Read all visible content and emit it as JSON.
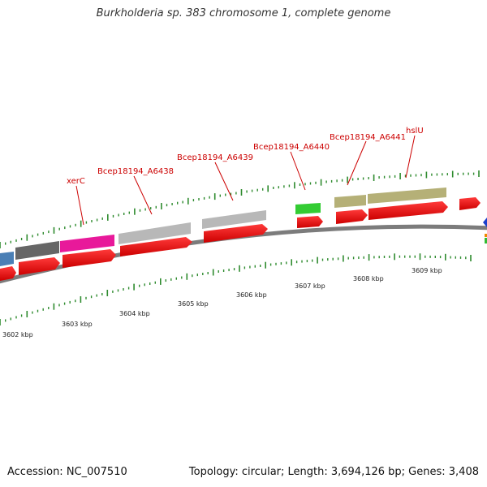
{
  "header": {
    "title": "Burkholderia sp. 383 chromosome 1, complete genome"
  },
  "footer": {
    "accession": "Accession: NC_007510",
    "topology": "Topology: circular; Length: 3,694,126 bp; Genes: 3,408"
  },
  "colors": {
    "backbone": "#8a8a8a",
    "cds_forward": "#ee1111",
    "tick": "#2e8b2e",
    "label": "#cc0000"
  },
  "gene_labels": [
    "xerC",
    "Bcep18194_A6438",
    "Bcep18194_A6439",
    "Bcep18194_A6440",
    "Bcep18194_A6441",
    "hslU"
  ],
  "position_ticks": [
    "3602 kbp",
    "3603 kbp",
    "3604 kbp",
    "3605 kbp",
    "3606 kbp",
    "3607 kbp",
    "3608 kbp",
    "3609 kbp"
  ],
  "feature_tracks": [
    {
      "name": "blue-feature",
      "color": "#4a7fb5"
    },
    {
      "name": "dark-gray-feature",
      "color": "#666666"
    },
    {
      "name": "xerC-feature",
      "color": "#e8199a"
    },
    {
      "name": "A6438-feature",
      "color": "#b8b8b8"
    },
    {
      "name": "A6439-feature",
      "color": "#b8b8b8"
    },
    {
      "name": "A6440-feature",
      "color": "#33cc33"
    },
    {
      "name": "A6441-feature",
      "color": "#b5b077"
    },
    {
      "name": "hslU-feature",
      "color": "#b5b077"
    }
  ]
}
